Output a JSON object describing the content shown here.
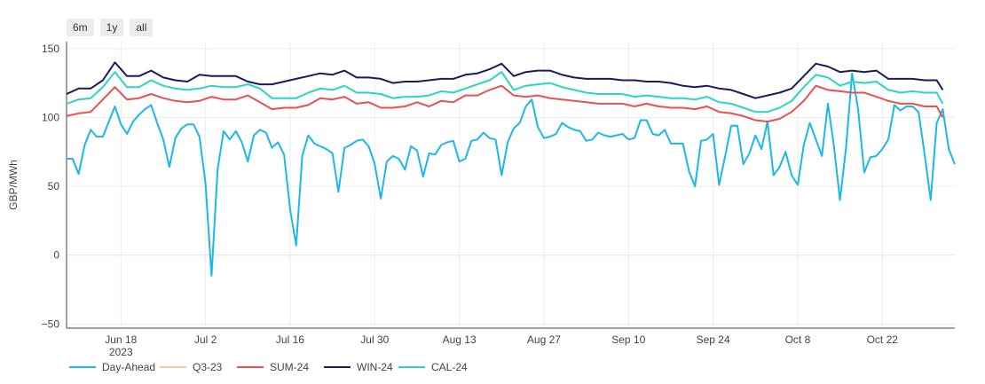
{
  "range_buttons": [
    {
      "label": "6m"
    },
    {
      "label": "1y"
    },
    {
      "label": "all"
    }
  ],
  "chart_data": {
    "type": "line",
    "ylabel": "GBP/MWh",
    "xlabel": "",
    "ylim": [
      -53,
      155
    ],
    "yticks": [
      -50,
      0,
      50,
      100,
      150
    ],
    "xlim": [
      "2023-06-09",
      "2023-11-03"
    ],
    "x_ticks": [
      {
        "date": "2023-06-18",
        "label": "Jun 18"
      },
      {
        "date": "2023-07-02",
        "label": "Jul 2"
      },
      {
        "date": "2023-07-16",
        "label": "Jul 16"
      },
      {
        "date": "2023-07-30",
        "label": "Jul 30"
      },
      {
        "date": "2023-08-13",
        "label": "Aug 13"
      },
      {
        "date": "2023-08-27",
        "label": "Aug 27"
      },
      {
        "date": "2023-09-10",
        "label": "Sep 10"
      },
      {
        "date": "2023-09-24",
        "label": "Sep 24"
      },
      {
        "date": "2023-10-08",
        "label": "Oct 8"
      },
      {
        "date": "2023-10-22",
        "label": "Oct 22"
      }
    ],
    "x_year_label": "2023",
    "grid": true,
    "legend": "bottom",
    "series": [
      {
        "name": "Day-Ahead",
        "color": "#1cb8e8",
        "hidden": false,
        "x": [
          "2023-06-09",
          "2023-06-10",
          "2023-06-11",
          "2023-06-12",
          "2023-06-13",
          "2023-06-14",
          "2023-06-15",
          "2023-06-16",
          "2023-06-17",
          "2023-06-18",
          "2023-06-19",
          "2023-06-20",
          "2023-06-21",
          "2023-06-22",
          "2023-06-23",
          "2023-06-24",
          "2023-06-25",
          "2023-06-26",
          "2023-06-27",
          "2023-06-28",
          "2023-06-29",
          "2023-06-30",
          "2023-07-01",
          "2023-07-02",
          "2023-07-03",
          "2023-07-04",
          "2023-07-05",
          "2023-07-06",
          "2023-07-07",
          "2023-07-08",
          "2023-07-09",
          "2023-07-10",
          "2023-07-11",
          "2023-07-12",
          "2023-07-13",
          "2023-07-14",
          "2023-07-15",
          "2023-07-16",
          "2023-07-17",
          "2023-07-18",
          "2023-07-19",
          "2023-07-20",
          "2023-07-21",
          "2023-07-22",
          "2023-07-23",
          "2023-07-24",
          "2023-07-25",
          "2023-07-26",
          "2023-07-27",
          "2023-07-28",
          "2023-07-29",
          "2023-07-30",
          "2023-07-31",
          "2023-08-01",
          "2023-08-02",
          "2023-08-03",
          "2023-08-04",
          "2023-08-05",
          "2023-08-06",
          "2023-08-07",
          "2023-08-08",
          "2023-08-09",
          "2023-08-10",
          "2023-08-11",
          "2023-08-12",
          "2023-08-13",
          "2023-08-14",
          "2023-08-15",
          "2023-08-16",
          "2023-08-17",
          "2023-08-18",
          "2023-08-19",
          "2023-08-20",
          "2023-08-21",
          "2023-08-22",
          "2023-08-23",
          "2023-08-24",
          "2023-08-25",
          "2023-08-26",
          "2023-08-27",
          "2023-08-28",
          "2023-08-29",
          "2023-08-30",
          "2023-08-31",
          "2023-09-01",
          "2023-09-02",
          "2023-09-03",
          "2023-09-04",
          "2023-09-05",
          "2023-09-06",
          "2023-09-07",
          "2023-09-08",
          "2023-09-09",
          "2023-09-10",
          "2023-09-11",
          "2023-09-12",
          "2023-09-13",
          "2023-09-14",
          "2023-09-15",
          "2023-09-16",
          "2023-09-17",
          "2023-09-18",
          "2023-09-19",
          "2023-09-20",
          "2023-09-21",
          "2023-09-22",
          "2023-09-23",
          "2023-09-24",
          "2023-09-25",
          "2023-09-26",
          "2023-09-27",
          "2023-09-28",
          "2023-09-29",
          "2023-09-30",
          "2023-10-01",
          "2023-10-02",
          "2023-10-03",
          "2023-10-04",
          "2023-10-05",
          "2023-10-06",
          "2023-10-07",
          "2023-10-08",
          "2023-10-09",
          "2023-10-10",
          "2023-10-11",
          "2023-10-12",
          "2023-10-13",
          "2023-10-14",
          "2023-10-15",
          "2023-10-16",
          "2023-10-17",
          "2023-10-18",
          "2023-10-19",
          "2023-10-20",
          "2023-10-21",
          "2023-10-22",
          "2023-10-23",
          "2023-10-24",
          "2023-10-25",
          "2023-10-26",
          "2023-10-27",
          "2023-10-28",
          "2023-10-29",
          "2023-10-30",
          "2023-10-31",
          "2023-11-01",
          "2023-11-02",
          "2023-11-03"
        ],
        "y": [
          70,
          70,
          59,
          80,
          91,
          86,
          86,
          97,
          108,
          95,
          88,
          97,
          102,
          106,
          109,
          96,
          84,
          64,
          85,
          92,
          95,
          95,
          86,
          52,
          -15,
          62,
          90,
          84,
          90,
          82,
          68,
          87,
          91,
          89,
          78,
          82,
          73,
          33,
          7,
          72,
          87,
          81,
          79,
          77,
          74,
          46,
          78,
          80,
          83,
          84,
          79,
          66,
          41,
          68,
          72,
          70,
          62,
          79,
          76,
          57,
          74,
          73,
          80,
          82,
          83,
          68,
          70,
          83,
          84,
          89,
          85,
          84,
          58,
          82,
          92,
          96,
          108,
          113,
          93,
          85,
          86,
          88,
          96,
          93,
          91,
          90,
          83,
          84,
          89,
          87,
          86,
          87,
          88,
          84,
          85,
          98,
          98,
          88,
          87,
          91,
          81,
          81,
          81,
          61,
          50,
          83,
          84,
          88,
          51,
          72,
          94,
          94,
          66,
          74,
          87,
          77,
          97,
          58,
          64,
          75,
          58,
          51,
          80,
          96,
          84,
          72,
          110,
          79,
          40,
          78,
          132,
          106,
          60,
          71,
          72,
          77,
          84,
          109,
          105,
          108,
          108,
          104,
          73,
          40,
          96,
          106,
          77,
          66
        ]
      },
      {
        "name": "Q3-23",
        "color": "#f5c9a0",
        "hidden": true,
        "x": [],
        "y": []
      },
      {
        "name": "SUM-24",
        "color": "#e8514f",
        "hidden": false,
        "x": [
          "2023-06-09",
          "2023-06-11",
          "2023-06-13",
          "2023-06-15",
          "2023-06-17",
          "2023-06-19",
          "2023-06-21",
          "2023-06-23",
          "2023-06-25",
          "2023-06-27",
          "2023-06-29",
          "2023-07-01",
          "2023-07-03",
          "2023-07-05",
          "2023-07-07",
          "2023-07-09",
          "2023-07-11",
          "2023-07-13",
          "2023-07-15",
          "2023-07-17",
          "2023-07-19",
          "2023-07-21",
          "2023-07-23",
          "2023-07-25",
          "2023-07-27",
          "2023-07-29",
          "2023-07-31",
          "2023-08-02",
          "2023-08-04",
          "2023-08-06",
          "2023-08-08",
          "2023-08-10",
          "2023-08-12",
          "2023-08-14",
          "2023-08-16",
          "2023-08-18",
          "2023-08-20",
          "2023-08-22",
          "2023-08-24",
          "2023-08-26",
          "2023-08-28",
          "2023-08-30",
          "2023-09-01",
          "2023-09-03",
          "2023-09-05",
          "2023-09-07",
          "2023-09-09",
          "2023-09-11",
          "2023-09-13",
          "2023-09-15",
          "2023-09-17",
          "2023-09-19",
          "2023-09-21",
          "2023-09-23",
          "2023-09-25",
          "2023-09-27",
          "2023-09-29",
          "2023-10-01",
          "2023-10-03",
          "2023-10-05",
          "2023-10-07",
          "2023-10-09",
          "2023-10-11",
          "2023-10-13",
          "2023-10-15",
          "2023-10-17",
          "2023-10-19",
          "2023-10-21",
          "2023-10-23",
          "2023-10-25",
          "2023-10-27",
          "2023-10-29",
          "2023-10-31",
          "2023-11-01"
        ],
        "y": [
          101,
          103,
          104,
          113,
          122,
          113,
          114,
          117,
          114,
          112,
          111,
          112,
          115,
          113,
          113,
          116,
          111,
          106,
          107,
          107,
          109,
          114,
          113,
          115,
          110,
          111,
          107,
          107,
          108,
          111,
          108,
          112,
          111,
          116,
          116,
          120,
          123,
          116,
          115,
          116,
          114,
          113,
          112,
          111,
          110,
          110,
          110,
          108,
          110,
          108,
          107,
          107,
          106,
          108,
          104,
          103,
          101,
          98,
          97,
          99,
          104,
          112,
          123,
          120,
          119,
          118,
          118,
          115,
          112,
          110,
          110,
          108,
          108,
          100
        ]
      },
      {
        "name": "WIN-24",
        "color": "#1a1a5e",
        "hidden": false,
        "x": [
          "2023-06-09",
          "2023-06-11",
          "2023-06-13",
          "2023-06-15",
          "2023-06-17",
          "2023-06-19",
          "2023-06-21",
          "2023-06-23",
          "2023-06-25",
          "2023-06-27",
          "2023-06-29",
          "2023-07-01",
          "2023-07-03",
          "2023-07-05",
          "2023-07-07",
          "2023-07-09",
          "2023-07-11",
          "2023-07-13",
          "2023-07-15",
          "2023-07-17",
          "2023-07-19",
          "2023-07-21",
          "2023-07-23",
          "2023-07-25",
          "2023-07-27",
          "2023-07-29",
          "2023-07-31",
          "2023-08-02",
          "2023-08-04",
          "2023-08-06",
          "2023-08-08",
          "2023-08-10",
          "2023-08-12",
          "2023-08-14",
          "2023-08-16",
          "2023-08-18",
          "2023-08-20",
          "2023-08-22",
          "2023-08-24",
          "2023-08-26",
          "2023-08-28",
          "2023-08-30",
          "2023-09-01",
          "2023-09-03",
          "2023-09-05",
          "2023-09-07",
          "2023-09-09",
          "2023-09-11",
          "2023-09-13",
          "2023-09-15",
          "2023-09-17",
          "2023-09-19",
          "2023-09-21",
          "2023-09-23",
          "2023-09-25",
          "2023-09-27",
          "2023-09-29",
          "2023-10-01",
          "2023-10-03",
          "2023-10-05",
          "2023-10-07",
          "2023-10-09",
          "2023-10-11",
          "2023-10-13",
          "2023-10-15",
          "2023-10-17",
          "2023-10-19",
          "2023-10-21",
          "2023-10-23",
          "2023-10-25",
          "2023-10-27",
          "2023-10-29",
          "2023-10-31",
          "2023-11-01"
        ],
        "y": [
          117,
          121,
          121,
          127,
          140,
          130,
          130,
          134,
          129,
          127,
          126,
          131,
          130,
          130,
          130,
          126,
          124,
          124,
          126,
          128,
          130,
          132,
          131,
          134,
          129,
          129,
          128,
          125,
          126,
          126,
          127,
          128,
          128,
          131,
          132,
          135,
          139,
          130,
          133,
          134,
          134,
          131,
          129,
          128,
          128,
          128,
          127,
          127,
          126,
          126,
          125,
          123,
          122,
          123,
          121,
          120,
          117,
          114,
          116,
          118,
          121,
          130,
          139,
          137,
          133,
          134,
          133,
          134,
          128,
          128,
          128,
          127,
          127,
          120
        ]
      },
      {
        "name": "CAL-24",
        "color": "#2bd6c0",
        "hidden": false,
        "x": [
          "2023-06-09",
          "2023-06-11",
          "2023-06-13",
          "2023-06-15",
          "2023-06-17",
          "2023-06-19",
          "2023-06-21",
          "2023-06-23",
          "2023-06-25",
          "2023-06-27",
          "2023-06-29",
          "2023-07-01",
          "2023-07-03",
          "2023-07-05",
          "2023-07-07",
          "2023-07-09",
          "2023-07-11",
          "2023-07-13",
          "2023-07-15",
          "2023-07-17",
          "2023-07-19",
          "2023-07-21",
          "2023-07-23",
          "2023-07-25",
          "2023-07-27",
          "2023-07-29",
          "2023-07-31",
          "2023-08-02",
          "2023-08-04",
          "2023-08-06",
          "2023-08-08",
          "2023-08-10",
          "2023-08-12",
          "2023-08-14",
          "2023-08-16",
          "2023-08-18",
          "2023-08-20",
          "2023-08-22",
          "2023-08-24",
          "2023-08-26",
          "2023-08-28",
          "2023-08-30",
          "2023-09-01",
          "2023-09-03",
          "2023-09-05",
          "2023-09-07",
          "2023-09-09",
          "2023-09-11",
          "2023-09-13",
          "2023-09-15",
          "2023-09-17",
          "2023-09-19",
          "2023-09-21",
          "2023-09-23",
          "2023-09-25",
          "2023-09-27",
          "2023-09-29",
          "2023-10-01",
          "2023-10-03",
          "2023-10-05",
          "2023-10-07",
          "2023-10-09",
          "2023-10-11",
          "2023-10-13",
          "2023-10-15",
          "2023-10-17",
          "2023-10-19",
          "2023-10-21",
          "2023-10-23",
          "2023-10-25",
          "2023-10-27",
          "2023-10-29",
          "2023-10-31",
          "2023-11-01"
        ],
        "y": [
          110,
          113,
          114,
          122,
          133,
          122,
          122,
          127,
          123,
          121,
          120,
          121,
          123,
          122,
          122,
          124,
          121,
          114,
          114,
          114,
          118,
          121,
          120,
          123,
          118,
          118,
          117,
          114,
          115,
          115,
          116,
          119,
          118,
          121,
          124,
          127,
          133,
          120,
          123,
          124,
          125,
          122,
          120,
          118,
          117,
          117,
          117,
          115,
          116,
          115,
          114,
          114,
          113,
          115,
          111,
          110,
          107,
          104,
          104,
          107,
          112,
          122,
          131,
          129,
          123,
          126,
          125,
          126,
          120,
          118,
          119,
          118,
          118,
          110
        ]
      }
    ]
  }
}
